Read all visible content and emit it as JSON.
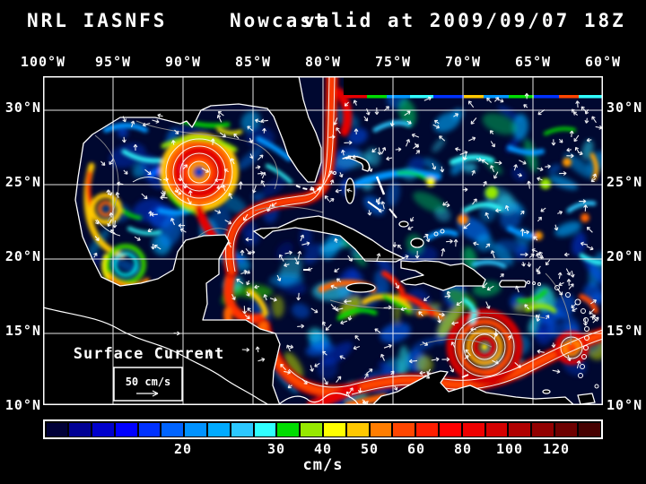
{
  "title": {
    "model": "NRL IASNFS",
    "run_type": "Nowcast",
    "valid": "valid at 2009/09/07 18Z"
  },
  "axes": {
    "lon_labels": [
      "100°W",
      "95°W",
      "90°W",
      "85°W",
      "80°W",
      "75°W",
      "70°W",
      "65°W",
      "60°W"
    ],
    "lat_labels": [
      "30°N",
      "25°N",
      "20°N",
      "15°N",
      "10°N"
    ]
  },
  "map_annotations": {
    "field_label": "Surface Current",
    "scale_label": "50 cm/s"
  },
  "colorbar": {
    "unit": "cm/s",
    "colors": [
      "#000038",
      "#000094",
      "#0000CC",
      "#0000FF",
      "#0032FF",
      "#0064FF",
      "#0092FF",
      "#00AAFF",
      "#2CC8FF",
      "#30FFFF",
      "#00DC00",
      "#96E800",
      "#FFFF00",
      "#FFC800",
      "#FF7D00",
      "#FF4600",
      "#FF1E00",
      "#FF0000",
      "#EE0000",
      "#D40000",
      "#B00000",
      "#920000",
      "#6E0000",
      "#460000"
    ],
    "ticks": [
      {
        "label": "20",
        "boundary_index": 6
      },
      {
        "label": "30",
        "boundary_index": 10
      },
      {
        "label": "40",
        "boundary_index": 12
      },
      {
        "label": "50",
        "boundary_index": 14
      },
      {
        "label": "60",
        "boundary_index": 16
      },
      {
        "label": "80",
        "boundary_index": 18
      },
      {
        "label": "100",
        "boundary_index": 20
      },
      {
        "label": "120",
        "boundary_index": 22
      }
    ]
  }
}
